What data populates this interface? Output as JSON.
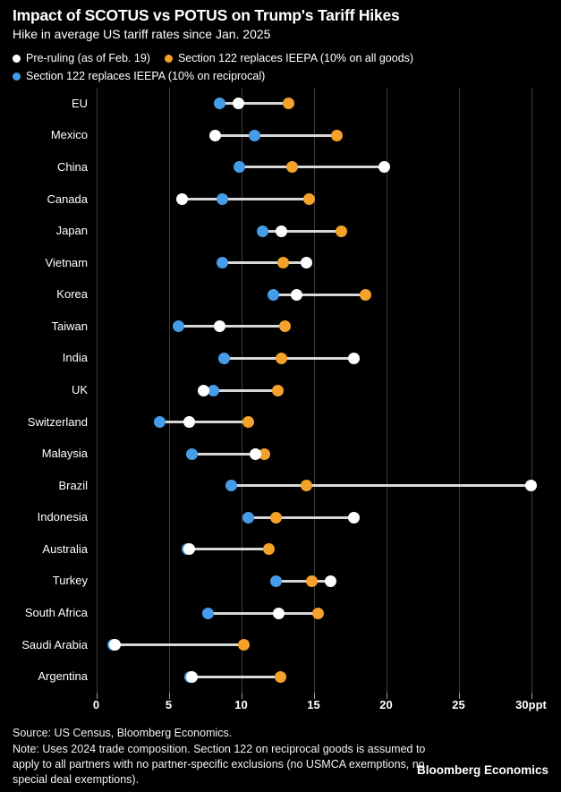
{
  "header": {
    "title": "Impact of SCOTUS vs POTUS on Trump's Tariff Hikes",
    "subtitle": "Hike in average US tariff rates since Jan. 2025"
  },
  "legend": {
    "items": [
      {
        "label": "Pre-ruling (as of Feb. 19)",
        "color": "#ffffff"
      },
      {
        "label": "Section 122 replaces IEEPA (10% on all goods)",
        "color": "#f5a22a"
      },
      {
        "label": "Section 122 replaces IEEPA (10% on reciprocal)",
        "color": "#459de9"
      }
    ]
  },
  "chart_data": {
    "type": "scatter",
    "variant": "horizontal-dumbbell-dot-plot",
    "unit": "ppt",
    "title": "Impact of SCOTUS vs POTUS on Trump's Tariff Hikes",
    "subtitle": "Hike in average US tariff rates since Jan. 2025",
    "categories": [
      "EU",
      "Mexico",
      "China",
      "Canada",
      "Japan",
      "Vietnam",
      "Korea",
      "Taiwan",
      "India",
      "UK",
      "Switzerland",
      "Malaysia",
      "Brazil",
      "Indonesia",
      "Australia",
      "Turkey",
      "South Africa",
      "Saudi Arabia",
      "Argentina"
    ],
    "series": [
      {
        "name": "Pre-ruling (as of Feb. 19)",
        "color": "#ffffff",
        "values": [
          9.8,
          8.2,
          19.9,
          5.9,
          12.8,
          14.5,
          13.8,
          8.5,
          17.8,
          7.4,
          6.4,
          11.0,
          30.0,
          17.8,
          6.4,
          16.2,
          12.6,
          1.3,
          6.6
        ]
      },
      {
        "name": "Section 122 replaces IEEPA (10% on all goods)",
        "color": "#f5a22a",
        "values": [
          13.3,
          16.6,
          13.5,
          14.7,
          16.9,
          12.9,
          18.6,
          13.0,
          12.8,
          12.5,
          10.5,
          11.6,
          14.5,
          12.4,
          11.9,
          14.9,
          15.3,
          10.2,
          12.7
        ]
      },
      {
        "name": "Section 122 replaces IEEPA (10% on reciprocal)",
        "color": "#459de9",
        "values": [
          8.5,
          10.9,
          9.9,
          8.7,
          11.5,
          8.7,
          12.2,
          5.7,
          8.8,
          8.1,
          4.4,
          6.6,
          9.3,
          10.5,
          6.3,
          12.4,
          7.7,
          1.2,
          6.5
        ]
      }
    ],
    "xlim": [
      0,
      30
    ],
    "x_ticks": [
      0,
      5,
      10,
      15,
      20,
      25,
      30
    ],
    "x_tick_labels": [
      "0",
      "5",
      "10",
      "15",
      "20",
      "25",
      "30ppt"
    ],
    "grid": "vertical",
    "legend_position": "top"
  },
  "footer": {
    "source": "Source: US Census, Bloomberg Economics.",
    "note": "Note: Uses 2024 trade composition. Section 122 on reciprocal goods is assumed to apply to all partners with no partner-specific exclusions (no USMCA exemptions, no special deal exemptions).",
    "brand": "Bloomberg Economics"
  },
  "colors": {
    "background": "#000000",
    "connector": "#d8d8d8",
    "gridline": "#3c3c3c",
    "text": "#ffffff"
  }
}
